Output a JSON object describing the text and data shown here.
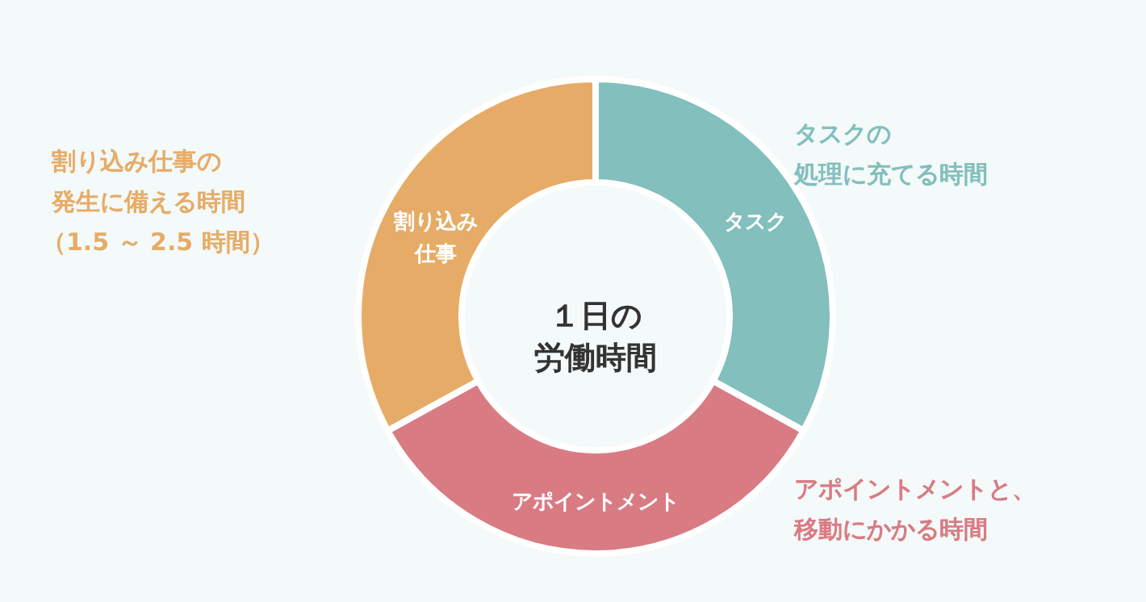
{
  "chart_data": {
    "type": "donut",
    "title": "１日の労働時間",
    "categories": [
      "タスク",
      "アポイントメント",
      "割り込み仕事"
    ],
    "values": [
      33,
      34,
      33
    ],
    "colors": [
      "#82bfbd",
      "#d97b83",
      "#e6ac67"
    ],
    "annotations": [
      "タスクの",
      "処理に充てる時間",
      "アポイントメントと、",
      "移動にかかる時間",
      "割り込み仕事の",
      "発生に備える時間",
      "（1.5 ～ 2.5 時間）"
    ]
  }
}
